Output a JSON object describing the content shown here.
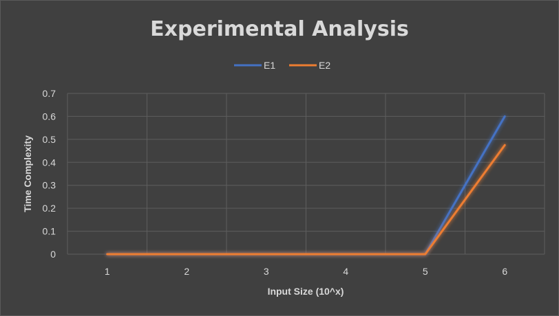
{
  "chart_data": {
    "type": "line",
    "title": "Experimental Analysis",
    "xlabel": "Input Size (10^x)",
    "ylabel": "Time Complexity",
    "categories": [
      "1",
      "2",
      "3",
      "4",
      "5",
      "6"
    ],
    "ylim": [
      0,
      0.7
    ],
    "yticks": [
      "0",
      "0.1",
      "0.2",
      "0.3",
      "0.4",
      "0.5",
      "0.6",
      "0.7"
    ],
    "grid": true,
    "legend_position": "top",
    "series": [
      {
        "name": "E1",
        "color": "#4472c4",
        "values": [
          0,
          0,
          0,
          0,
          0,
          0.6
        ]
      },
      {
        "name": "E2",
        "color": "#ed7d31",
        "values": [
          0,
          0,
          0,
          0,
          0,
          0.475
        ]
      }
    ]
  }
}
